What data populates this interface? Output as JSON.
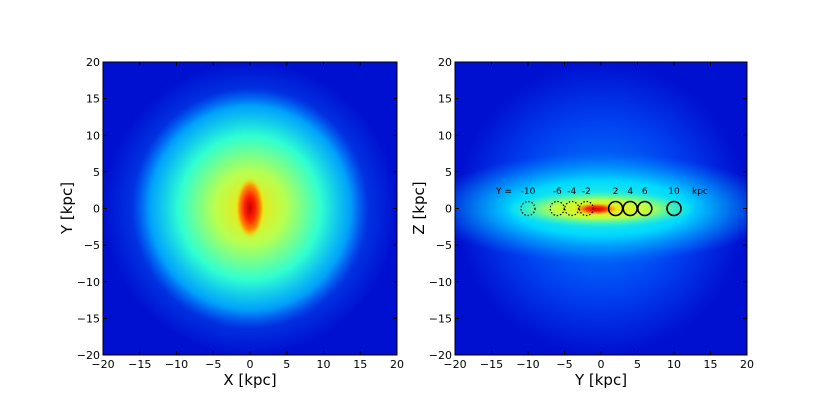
{
  "chart_data": [
    {
      "type": "heatmap",
      "title": "",
      "xlabel": "X [kpc]",
      "ylabel": "Y [kpc]",
      "xlim": [
        -20,
        20
      ],
      "ylim": [
        -20,
        20
      ],
      "xticks": [
        "−20",
        "−15",
        "−10",
        "−5",
        "0",
        "5",
        "10",
        "15",
        "20"
      ],
      "yticks": [
        "20",
        "15",
        "10",
        "5",
        "0",
        "−5",
        "−10",
        "−15",
        "−20"
      ],
      "xtick_values": [
        -20,
        -15,
        -10,
        -5,
        0,
        5,
        10,
        15,
        20
      ],
      "ytick_values": [
        20,
        15,
        10,
        5,
        0,
        -5,
        -10,
        -15,
        -20
      ],
      "colormap": "jet",
      "grid": false
    },
    {
      "type": "heatmap",
      "title": "",
      "xlabel": "Y [kpc]",
      "ylabel": "Z [kpc]",
      "xlim": [
        -20,
        20
      ],
      "ylim": [
        -20,
        20
      ],
      "xticks": [
        "−20",
        "−15",
        "−10",
        "−5",
        "0",
        "5",
        "10",
        "15",
        "20"
      ],
      "yticks": [
        "20",
        "15",
        "10",
        "5",
        "0",
        "−5",
        "−10",
        "−15",
        "−20"
      ],
      "xtick_values": [
        -20,
        -15,
        -10,
        -5,
        0,
        5,
        10,
        15,
        20
      ],
      "ytick_values": [
        20,
        15,
        10,
        5,
        0,
        -5,
        -10,
        -15,
        -20
      ],
      "colormap": "jet",
      "grid": false,
      "annotation_prefix": "Y =",
      "annotation_suffix": "kpc",
      "markers": [
        {
          "y": -10,
          "label": "-10",
          "style": "dotted"
        },
        {
          "y": -6,
          "label": "-6",
          "style": "dotted"
        },
        {
          "y": -4,
          "label": "-4",
          "style": "dotted"
        },
        {
          "y": -2,
          "label": "-2",
          "style": "dotted"
        },
        {
          "y": 2,
          "label": "2",
          "style": "solid"
        },
        {
          "y": 4,
          "label": "4",
          "style": "solid"
        },
        {
          "y": 6,
          "label": "6",
          "style": "solid"
        },
        {
          "y": 10,
          "label": "10",
          "style": "solid"
        }
      ],
      "marker_z": 0,
      "colors": {
        "low": "#0000c8",
        "mid": "#00e0e0",
        "high": "#c80000"
      }
    }
  ]
}
